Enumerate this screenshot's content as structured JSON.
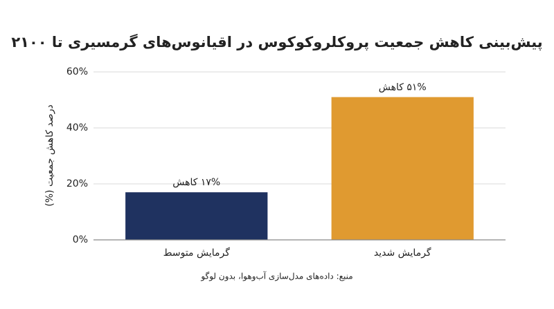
{
  "chart_data": {
    "type": "bar",
    "title": "پیش‌بینی کاهش جمعیت پروکلروکوکوس در اقیانوس‌های گرمسیری تا ۲۱۰۰",
    "y_label": "درصد کاهش جمعیت (%)",
    "source": "منبع: داده‌های مدل‌سازی آب‌وهوا، بدون لوگو",
    "categories": [
      "گرمایش متوسط",
      "گرمایش شدید"
    ],
    "values": [
      17,
      51
    ],
    "value_labels": [
      "۱۷% کاهش",
      "۵۱% کاهش"
    ],
    "colors": [
      "#1f3260",
      "#e09a30"
    ],
    "ylim": [
      0,
      60
    ],
    "yticks": [
      {
        "value": 0,
        "label": "0%"
      },
      {
        "value": 20,
        "label": "20%"
      },
      {
        "value": 40,
        "label": "40%"
      },
      {
        "value": 60,
        "label": "60%"
      }
    ],
    "grid": true
  }
}
